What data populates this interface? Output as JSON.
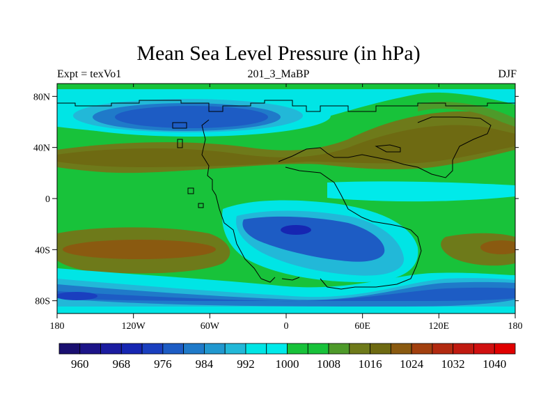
{
  "title": "Mean Sea Level Pressure (in hPa)",
  "left_string": "Expt = texVo1",
  "center_string": "201_3_MaBP",
  "right_string": "DJF",
  "map": {
    "projection": "cylindrical-equidistant",
    "lon_range": [
      -180,
      180
    ],
    "lat_range": [
      -90,
      90
    ]
  },
  "chart_data": {
    "type": "heatmap",
    "title": "Mean Sea Level Pressure (in hPa)",
    "variable": "Mean Sea Level Pressure",
    "units": "hPa",
    "x_ticks": [
      {
        "value": -180,
        "label": "180"
      },
      {
        "value": -120,
        "label": "120W"
      },
      {
        "value": -60,
        "label": "60W"
      },
      {
        "value": 0,
        "label": "0"
      },
      {
        "value": 60,
        "label": "60E"
      },
      {
        "value": 120,
        "label": "120E"
      },
      {
        "value": 180,
        "label": "180"
      }
    ],
    "y_ticks": [
      {
        "value": 80,
        "label": "80N"
      },
      {
        "value": 40,
        "label": "40N"
      },
      {
        "value": 0,
        "label": "0"
      },
      {
        "value": -40,
        "label": "40S"
      },
      {
        "value": -80,
        "label": "80S"
      }
    ],
    "colorbar": {
      "levels": [
        960,
        964,
        968,
        972,
        976,
        980,
        984,
        988,
        992,
        996,
        1000,
        1004,
        1008,
        1012,
        1016,
        1020,
        1024,
        1028,
        1032,
        1036,
        1040
      ],
      "labeled_levels": [
        "960",
        "968",
        "976",
        "984",
        "992",
        "1000",
        "1008",
        "1016",
        "1024",
        "1032",
        "1040"
      ],
      "colors": [
        "#1a0f70",
        "#1c1488",
        "#1b1ca0",
        "#1626b2",
        "#1a3fbf",
        "#1d5cc4",
        "#1f7ac9",
        "#2198cf",
        "#22b8d8",
        "#00e5e5",
        "#00eaea",
        "#18c23a",
        "#18c23a",
        "#4e9a2a",
        "#6e7a1a",
        "#6e6a12",
        "#8a5a10",
        "#a2400f",
        "#b22a10",
        "#c01a10",
        "#d01010",
        "#e00000"
      ]
    }
  }
}
